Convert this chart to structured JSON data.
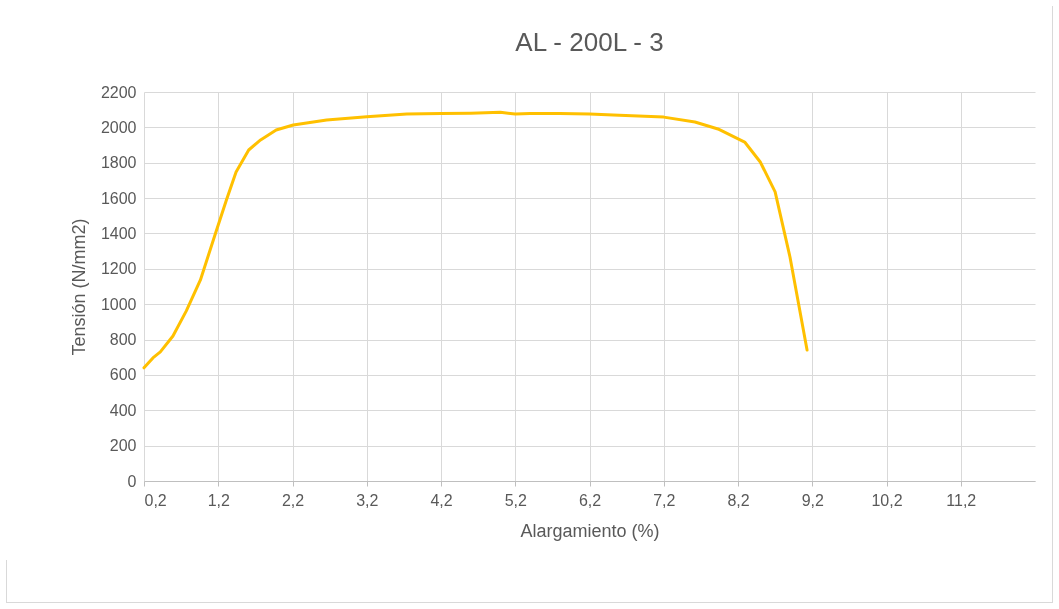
{
  "chart_data": {
    "type": "line",
    "title": "AL - 200L - 3",
    "xlabel": "Alargamiento (%)",
    "ylabel": "Tensión (N/mm2)",
    "series": [
      {
        "color": "#ffc000",
        "x": [
          0.2,
          0.32,
          0.42,
          0.59,
          0.77,
          0.96,
          1.16,
          1.31,
          1.44,
          1.61,
          1.77,
          1.98,
          2.21,
          2.66,
          3.2,
          3.74,
          4.2,
          4.6,
          5.0,
          5.2,
          5.4,
          5.8,
          6.2,
          6.6,
          7.2,
          7.62,
          7.93,
          8.29,
          8.5,
          8.7,
          8.9,
          9.13
        ],
        "values": [
          640,
          696,
          730,
          820,
          962,
          1137,
          1397,
          1589,
          1748,
          1872,
          1929,
          1985,
          2013,
          2042,
          2060,
          2076,
          2078,
          2080,
          2085,
          2075,
          2078,
          2078,
          2075,
          2068,
          2058,
          2030,
          1991,
          1917,
          1804,
          1635,
          1267,
          741
        ]
      }
    ],
    "xlim": [
      0.2,
      12.2
    ],
    "xticks": [
      {
        "value": 0.2,
        "label": "0,2"
      },
      {
        "value": 1.2,
        "label": "1,2"
      },
      {
        "value": 2.2,
        "label": "2,2"
      },
      {
        "value": 3.2,
        "label": "3,2"
      },
      {
        "value": 4.2,
        "label": "4,2"
      },
      {
        "value": 5.2,
        "label": "5,2"
      },
      {
        "value": 6.2,
        "label": "6,2"
      },
      {
        "value": 7.2,
        "label": "7,2"
      },
      {
        "value": 8.2,
        "label": "8,2"
      },
      {
        "value": 9.2,
        "label": "9,2"
      },
      {
        "value": 10.2,
        "label": "10,2"
      },
      {
        "value": 11.2,
        "label": "11,2"
      }
    ],
    "ylim": [
      0,
      2200
    ],
    "yticks": [
      0,
      200,
      400,
      600,
      800,
      1000,
      1200,
      1400,
      1600,
      1800,
      2000,
      2200
    ],
    "grid": true,
    "line_style": "solid",
    "marker": "none"
  }
}
